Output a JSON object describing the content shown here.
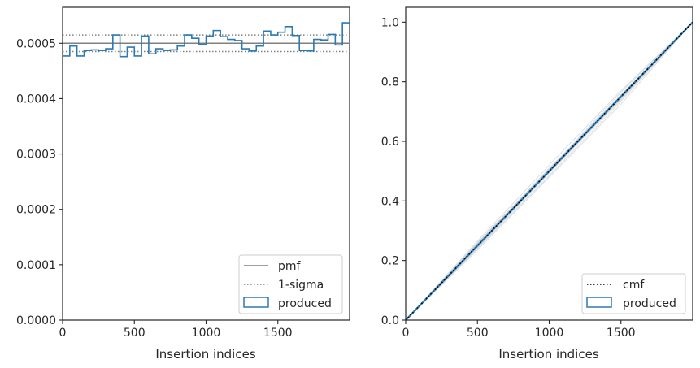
{
  "chart_data": [
    {
      "type": "line",
      "xlabel": "Insertion indices",
      "ylabel": "",
      "xlim": [
        0,
        2000
      ],
      "ylim": [
        0,
        0.000565
      ],
      "xticks": [
        0,
        500,
        1000,
        1500
      ],
      "xtick_labels": [
        "0",
        "500",
        "1000",
        "1500"
      ],
      "yticks": [
        0,
        0.0001,
        0.0002,
        0.0003,
        0.0004,
        0.0005
      ],
      "ytick_labels": [
        "0.0000",
        "0.0001",
        "0.0002",
        "0.0003",
        "0.0004",
        "0.0005"
      ],
      "grid": false,
      "legend_position": "lower-right",
      "reference_lines": [
        {
          "name": "pmf",
          "value": 0.0005,
          "style": "solid",
          "color": "#808080"
        },
        {
          "name": "1-sigma",
          "values": [
            0.000485,
            0.000515
          ],
          "style": "dotted",
          "color": "#808080"
        }
      ],
      "series": [
        {
          "name": "produced",
          "style": "step",
          "color": "#2a7ab4",
          "bin_edges": [
            0,
            50,
            100,
            150,
            200,
            250,
            300,
            350,
            400,
            450,
            500,
            550,
            600,
            650,
            700,
            750,
            800,
            850,
            900,
            950,
            1000,
            1050,
            1100,
            1150,
            1200,
            1250,
            1300,
            1350,
            1400,
            1450,
            1500,
            1550,
            1600,
            1650,
            1700,
            1750,
            1800,
            1850,
            1900,
            1950,
            2000
          ],
          "values": [
            0.000477,
            0.000495,
            0.000477,
            0.000487,
            0.000488,
            0.000487,
            0.00049,
            0.000515,
            0.000476,
            0.000493,
            0.000477,
            0.000513,
            0.000481,
            0.00049,
            0.000487,
            0.000488,
            0.000495,
            0.000515,
            0.000509,
            0.000498,
            0.000513,
            0.000523,
            0.000512,
            0.000507,
            0.000505,
            0.00049,
            0.000486,
            0.000495,
            0.000522,
            0.000515,
            0.00052,
            0.00053,
            0.000514,
            0.000487,
            0.000486,
            0.000507,
            0.000506,
            0.000516,
            0.000497,
            0.000537
          ]
        }
      ]
    },
    {
      "type": "line",
      "xlabel": "Insertion indices",
      "ylabel": "",
      "xlim": [
        0,
        2000
      ],
      "ylim": [
        0,
        1.05
      ],
      "xticks": [
        0,
        500,
        1000,
        1500
      ],
      "xtick_labels": [
        "0",
        "500",
        "1000",
        "1500"
      ],
      "yticks": [
        0,
        0.2,
        0.4,
        0.6,
        0.8,
        1.0
      ],
      "ytick_labels": [
        "0.0",
        "0.2",
        "0.4",
        "0.6",
        "0.8",
        "1.0"
      ],
      "grid": false,
      "legend_position": "lower-right",
      "series": [
        {
          "name": "cmf",
          "style": "dotted",
          "color": "#000000",
          "x": [
            0,
            2000
          ],
          "y": [
            0,
            1.0
          ]
        },
        {
          "name": "produced",
          "style": "step",
          "color": "#2a7ab4",
          "x": [
            0,
            2000
          ],
          "y": [
            0,
            1.0
          ]
        }
      ],
      "background_curves": [
        {
          "color": "#d4d4d4",
          "x": [
            0,
            500,
            1000,
            1500,
            2000
          ],
          "y": [
            0,
            0.265,
            0.52,
            0.77,
            1.0
          ]
        },
        {
          "color": "#d4d4d4",
          "x": [
            0,
            500,
            1000,
            1500,
            2000
          ],
          "y": [
            0,
            0.24,
            0.485,
            0.735,
            1.0
          ]
        },
        {
          "color": "#d4d4d4",
          "x": [
            0,
            500,
            1000,
            1500,
            2000
          ],
          "y": [
            0,
            0.255,
            0.51,
            0.745,
            1.0
          ]
        },
        {
          "color": "#d4d4d4",
          "x": [
            0,
            500,
            1000,
            1500,
            2000
          ],
          "y": [
            0,
            0.235,
            0.48,
            0.725,
            1.0
          ]
        },
        {
          "color": "#d4d4d4",
          "x": [
            0,
            500,
            1000,
            1500,
            2000
          ],
          "y": [
            0,
            0.26,
            0.505,
            0.765,
            1.0
          ]
        },
        {
          "color": "#d4d4d4",
          "x": [
            0,
            500,
            1000,
            1500,
            2000
          ],
          "y": [
            0,
            0.245,
            0.5,
            0.74,
            1.0
          ]
        },
        {
          "color": "#b5c9dc",
          "x": [
            0,
            500,
            1000,
            1500,
            2000
          ],
          "y": [
            0,
            0.258,
            0.507,
            0.756,
            1.0
          ]
        },
        {
          "color": "#b5c9dc",
          "x": [
            0,
            500,
            1000,
            1500,
            2000
          ],
          "y": [
            0,
            0.243,
            0.494,
            0.744,
            1.0
          ]
        }
      ]
    }
  ]
}
